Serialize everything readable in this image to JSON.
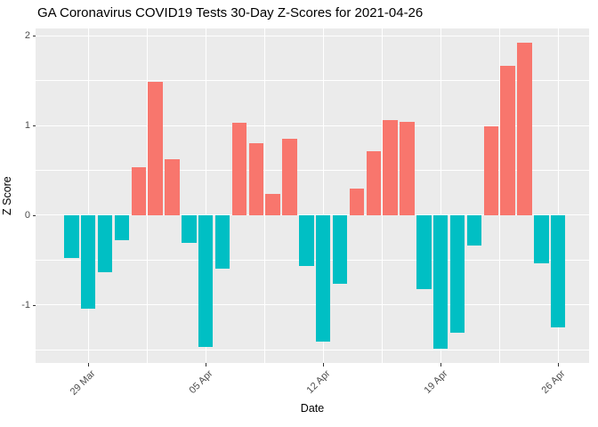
{
  "chart_data": {
    "type": "bar",
    "title": "GA Coronavirus COVID19 Tests 30-Day Z-Scores for 2021-04-26",
    "xlabel": "Date",
    "ylabel": "Z Score",
    "x": [
      "2021-03-28",
      "2021-03-29",
      "2021-03-30",
      "2021-03-31",
      "2021-04-01",
      "2021-04-02",
      "2021-04-03",
      "2021-04-04",
      "2021-04-05",
      "2021-04-06",
      "2021-04-07",
      "2021-04-08",
      "2021-04-09",
      "2021-04-10",
      "2021-04-11",
      "2021-04-12",
      "2021-04-13",
      "2021-04-14",
      "2021-04-15",
      "2021-04-16",
      "2021-04-17",
      "2021-04-18",
      "2021-04-19",
      "2021-04-20",
      "2021-04-21",
      "2021-04-22",
      "2021-04-23",
      "2021-04-24",
      "2021-04-25",
      "2021-04-26"
    ],
    "values": [
      -0.47,
      -1.04,
      -0.63,
      -0.28,
      0.54,
      1.49,
      0.62,
      -0.31,
      -1.46,
      -0.59,
      1.03,
      0.8,
      0.24,
      0.85,
      -0.56,
      -1.41,
      -0.76,
      0.3,
      0.71,
      1.06,
      1.04,
      -0.82,
      -1.48,
      -1.31,
      -0.34,
      0.99,
      1.66,
      1.92,
      -0.53,
      -1.25
    ],
    "x_ticks": [
      {
        "label": "29 Mar",
        "date": "2021-03-29"
      },
      {
        "label": "05 Apr",
        "date": "2021-04-05"
      },
      {
        "label": "12 Apr",
        "date": "2021-04-12"
      },
      {
        "label": "19 Apr",
        "date": "2021-04-19"
      },
      {
        "label": "26 Apr",
        "date": "2021-04-26"
      }
    ],
    "y_ticks": [
      -1,
      0,
      1,
      2
    ],
    "y_minor_ticks": [
      -1.5,
      -0.5,
      0.5,
      1.5
    ],
    "ylim": [
      -1.64,
      2.08
    ],
    "grid": true,
    "legend": "none",
    "colors": {
      "positive_bar": "#F8766D",
      "negative_bar": "#00BFC4",
      "panel_background": "#EBEBEB",
      "gridline": "#FFFFFF",
      "axis_text": "#4D4D4D",
      "title_text": "#000000"
    }
  }
}
